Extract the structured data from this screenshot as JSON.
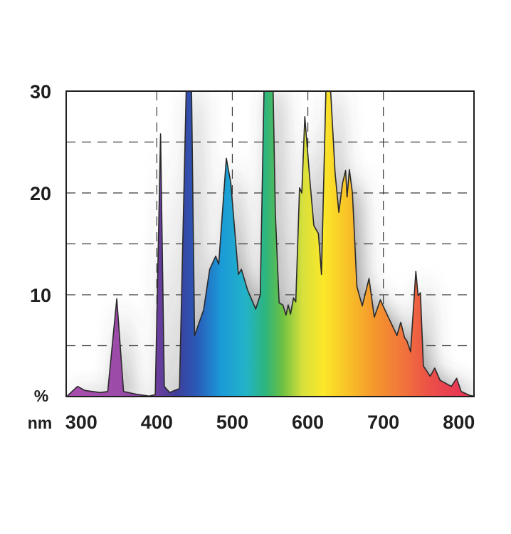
{
  "chart_data": {
    "type": "area",
    "title": "",
    "xlabel": "nm",
    "ylabel": "%",
    "xlim": [
      280,
      820
    ],
    "ylim": [
      0,
      30
    ],
    "grid": true,
    "x_ticks": [
      300,
      400,
      500,
      600,
      700,
      800
    ],
    "y_ticks": [
      10,
      20,
      30
    ],
    "series": [
      {
        "points": [
          [
            282,
            0.1
          ],
          [
            295,
            1.0
          ],
          [
            305,
            0.6
          ],
          [
            325,
            0.4
          ],
          [
            335,
            0.5
          ],
          [
            347,
            9.6
          ],
          [
            356,
            0.5
          ],
          [
            375,
            0.2
          ],
          [
            390,
            0.05
          ],
          [
            398,
            0.2
          ],
          [
            405,
            25.8
          ],
          [
            410,
            1.0
          ],
          [
            417,
            0.4
          ],
          [
            430,
            0.8
          ],
          [
            439,
            30.5
          ],
          [
            446,
            30.5
          ],
          [
            450,
            6.0
          ],
          [
            462,
            8.5
          ],
          [
            470,
            12.5
          ],
          [
            478,
            13.8
          ],
          [
            482,
            13.0
          ],
          [
            492,
            23.4
          ],
          [
            498,
            21.0
          ],
          [
            508,
            12.0
          ],
          [
            512,
            12.5
          ],
          [
            520,
            10.5
          ],
          [
            531,
            8.6
          ],
          [
            537,
            10.0
          ],
          [
            542,
            30.5
          ],
          [
            554,
            30.5
          ],
          [
            557,
            18.0
          ],
          [
            562,
            9.2
          ],
          [
            567,
            9.0
          ],
          [
            571,
            8.0
          ],
          [
            574,
            9.0
          ],
          [
            577,
            8.1
          ],
          [
            581,
            9.7
          ],
          [
            584,
            9.3
          ],
          [
            589,
            20.5
          ],
          [
            592,
            20.0
          ],
          [
            596,
            27.5
          ],
          [
            603,
            21.0
          ],
          [
            608,
            16.8
          ],
          [
            614,
            16.0
          ],
          [
            618,
            12.0
          ],
          [
            624,
            30.5
          ],
          [
            630,
            30.5
          ],
          [
            636,
            22.0
          ],
          [
            641,
            18.1
          ],
          [
            646,
            21.0
          ],
          [
            650,
            22.2
          ],
          [
            652,
            19.6
          ],
          [
            655,
            22.3
          ],
          [
            659,
            20.0
          ],
          [
            665,
            10.8
          ],
          [
            672,
            8.9
          ],
          [
            681,
            11.6
          ],
          [
            688,
            7.8
          ],
          [
            696,
            9.5
          ],
          [
            704,
            8.2
          ],
          [
            718,
            6.0
          ],
          [
            723,
            7.3
          ],
          [
            728,
            5.8
          ],
          [
            731,
            5.5
          ],
          [
            736,
            4.4
          ],
          [
            743,
            12.3
          ],
          [
            746,
            9.9
          ],
          [
            749,
            10.2
          ],
          [
            753,
            3.0
          ],
          [
            762,
            2.0
          ],
          [
            768,
            2.8
          ],
          [
            775,
            1.6
          ],
          [
            790,
            1.0
          ],
          [
            797,
            1.8
          ],
          [
            803,
            0.5
          ],
          [
            815,
            0.1
          ],
          [
            820,
            0.05
          ]
        ]
      }
    ]
  }
}
